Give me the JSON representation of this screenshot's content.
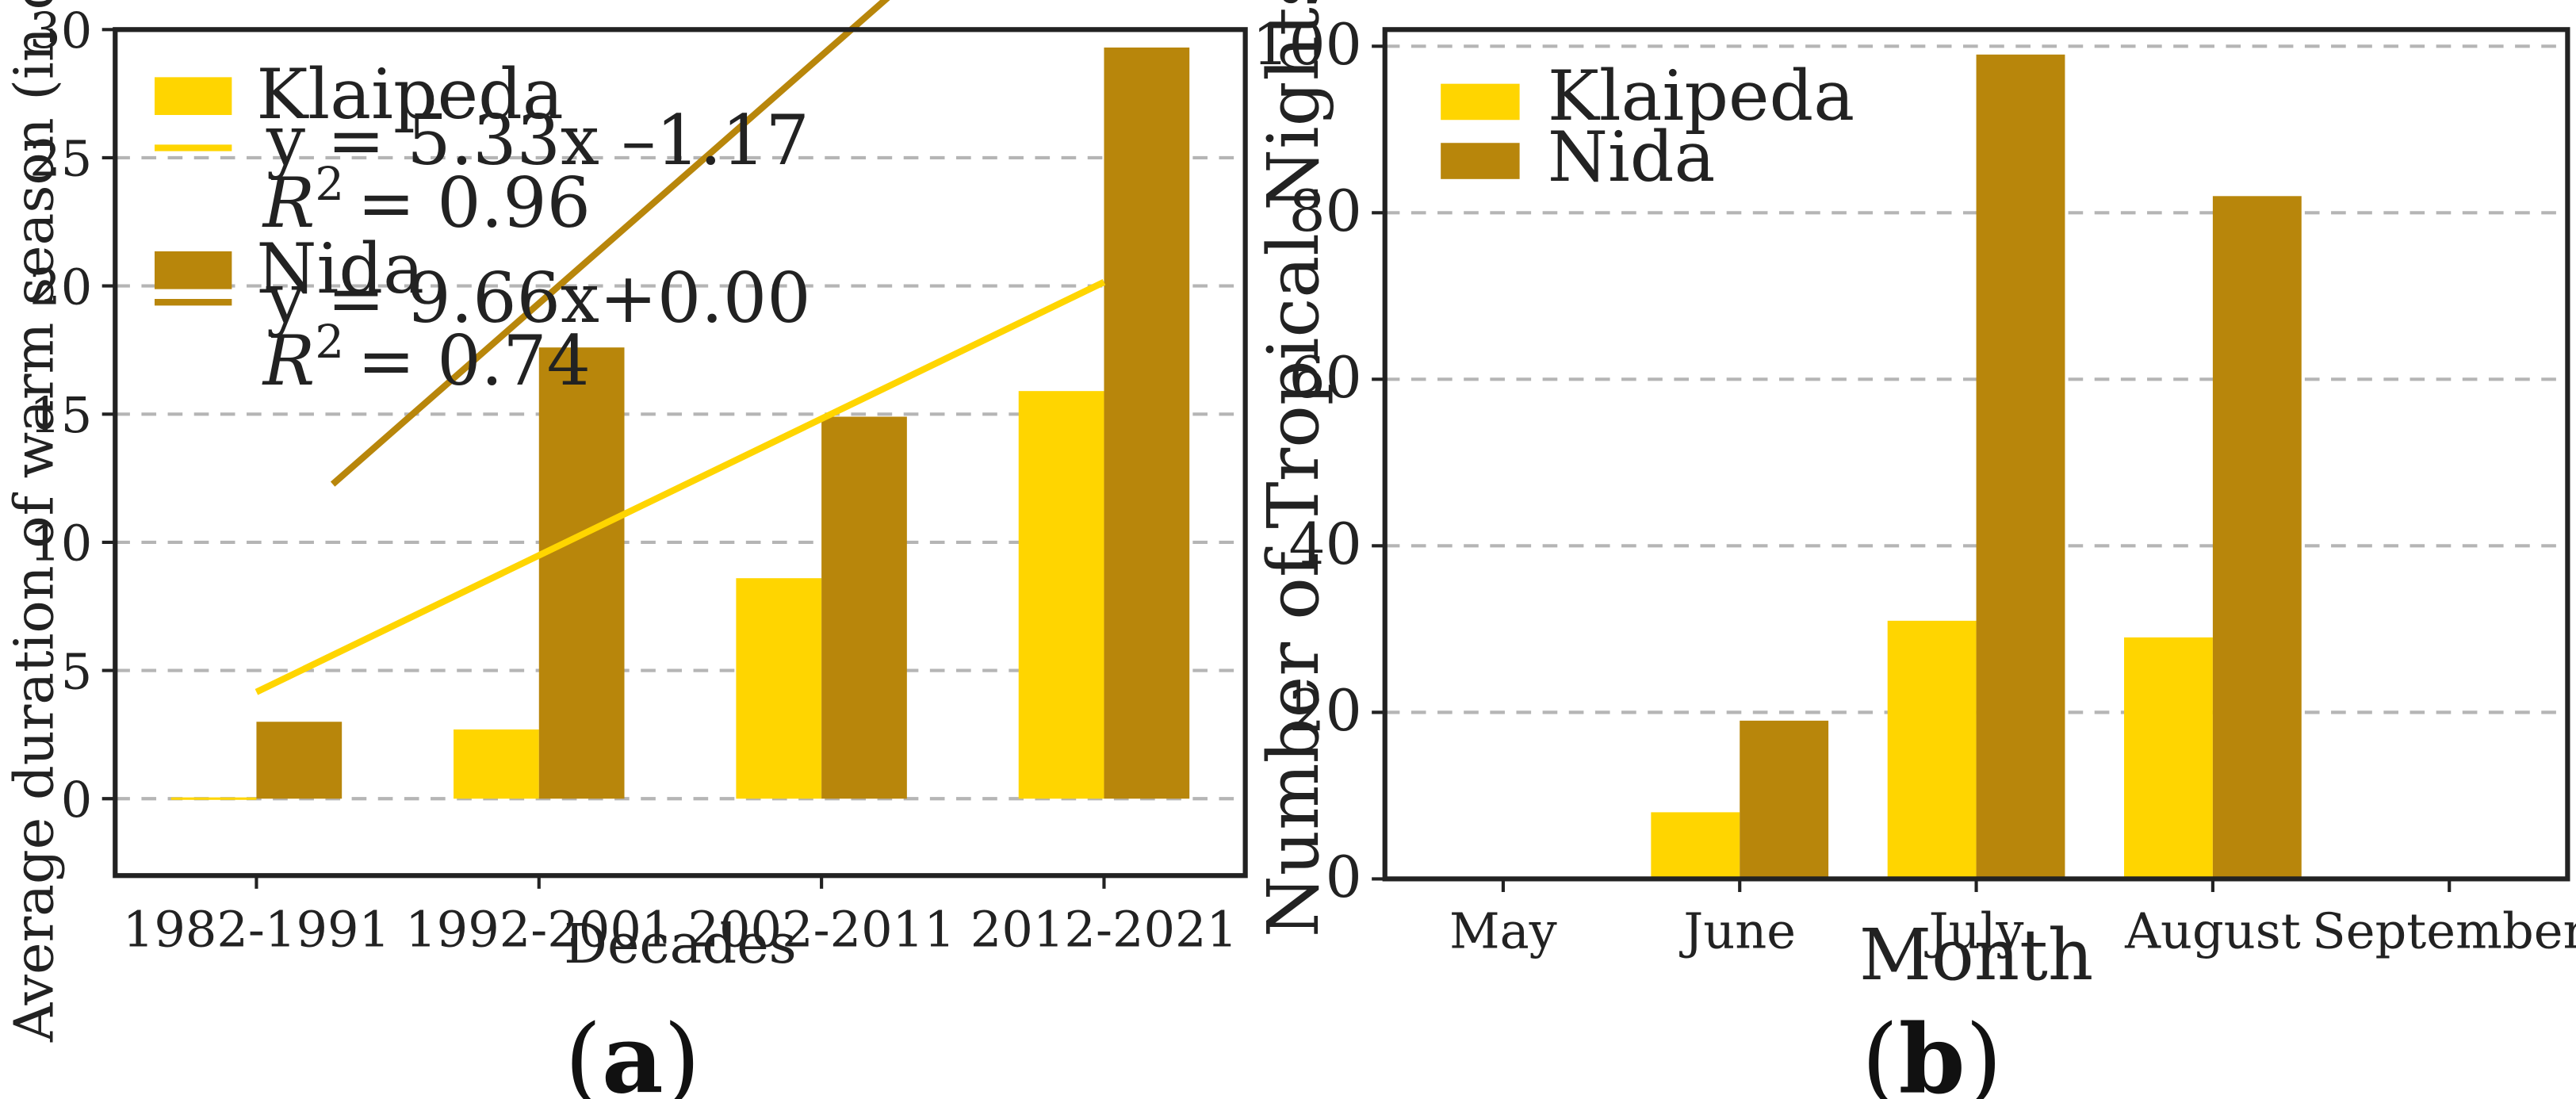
{
  "colors": {
    "klaipeda": "#FFD500",
    "nida": "#B8860B",
    "axis": "#222222",
    "grid": "#b5b5b5"
  },
  "chart_data": [
    {
      "panel": "(a)",
      "type": "bar",
      "title": "",
      "xlabel": "Decades",
      "ylabel": "Average duration of warm season (in days)",
      "categories": [
        "1982-1991",
        "1992-2001",
        "2002-2011",
        "2012-2021"
      ],
      "ylim": [
        -3,
        30
      ],
      "yticks": [
        0,
        5,
        10,
        15,
        20,
        25,
        30
      ],
      "series": [
        {
          "name": "Klaipeda",
          "values": [
            0.05,
            2.7,
            8.6,
            15.9
          ]
        },
        {
          "name": "Nida",
          "values": [
            3.0,
            17.6,
            14.9,
            29.3
          ]
        }
      ],
      "trendlines": [
        {
          "series": "Klaipeda",
          "equation": "y = 5.33x –1.17",
          "r2_label": "R",
          "r2_sup": "2",
          "r2_value": "= 0.96",
          "slope": 5.33,
          "intercept": -1.17
        },
        {
          "series": "Nida",
          "equation": "y = 9.66x+0.00",
          "r2_label": "R",
          "r2_sup": "2",
          "r2_value": "= 0.74",
          "slope": 9.66,
          "intercept": 0.0
        }
      ],
      "grid": "horizontal dashed",
      "legend": "top-left"
    },
    {
      "panel": "(b)",
      "type": "bar",
      "title": "",
      "xlabel": "Month",
      "ylabel": "Number of Tropical Nights",
      "categories": [
        "May",
        "June",
        "July",
        "August",
        "September"
      ],
      "ylim": [
        0,
        102
      ],
      "yticks": [
        0,
        20,
        40,
        60,
        80,
        100
      ],
      "series": [
        {
          "name": "Klaipeda",
          "values": [
            0,
            8,
            31,
            29,
            0
          ]
        },
        {
          "name": "Nida",
          "values": [
            0,
            19,
            99,
            82,
            0
          ]
        }
      ],
      "grid": "horizontal dashed",
      "legend": "top-left"
    }
  ]
}
